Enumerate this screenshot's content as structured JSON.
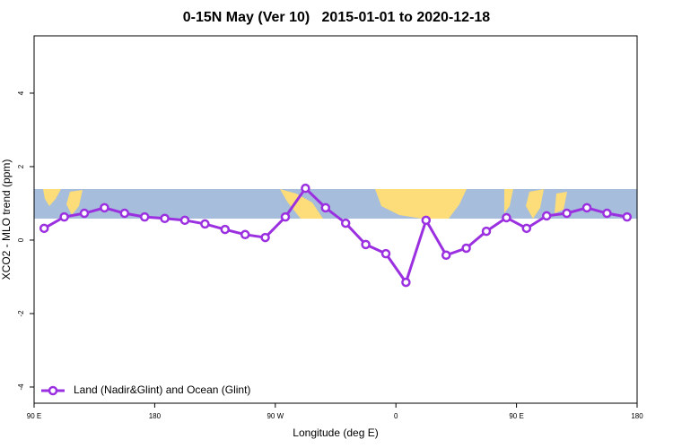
{
  "chart_data": {
    "type": "line",
    "title": "0-15N May (Ver 10)   2015-01-01 to 2020-12-18",
    "x_label": "Longitude (deg E)",
    "y_label": "XCO2 - MLO trend (ppm)",
    "x": [
      97.5,
      112.5,
      127.5,
      142.5,
      157.5,
      172.5,
      187.5,
      202.5,
      217.5,
      232.5,
      247.5,
      262.5,
      277.5,
      292.5,
      307.5,
      322.5,
      337.5,
      352.5,
      367.5,
      382.5,
      397.5,
      412.5,
      427.5,
      442.5,
      457.5,
      472.5,
      487.5,
      502.5,
      517.5,
      532.5
    ],
    "series": [
      {
        "name": "Land (Nadir&Glint) and Ocean (Glint)",
        "color": "#9b30e0",
        "values": [
          0.32,
          0.63,
          0.73,
          0.88,
          0.73,
          0.63,
          0.59,
          0.54,
          0.44,
          0.29,
          0.15,
          0.07,
          0.63,
          1.41,
          0.88,
          0.46,
          -0.12,
          -0.37,
          -1.15,
          0.54,
          -0.41,
          -0.22,
          0.24,
          0.61,
          0.32,
          0.66,
          0.73,
          0.88,
          0.73,
          0.63
        ]
      }
    ],
    "xlim": [
      90,
      540
    ],
    "xticks": [
      {
        "value": 90,
        "label": "90 E"
      },
      {
        "value": 180,
        "label": "180"
      },
      {
        "value": 270,
        "label": "90 W"
      },
      {
        "value": 360,
        "label": "0"
      },
      {
        "value": 450,
        "label": "90 E"
      },
      {
        "value": 540,
        "label": "180"
      }
    ],
    "ylim": [
      -4.44,
      5.56
    ],
    "yticks": [
      -4,
      -2,
      0,
      2,
      4
    ],
    "legend": "bottom-left"
  }
}
